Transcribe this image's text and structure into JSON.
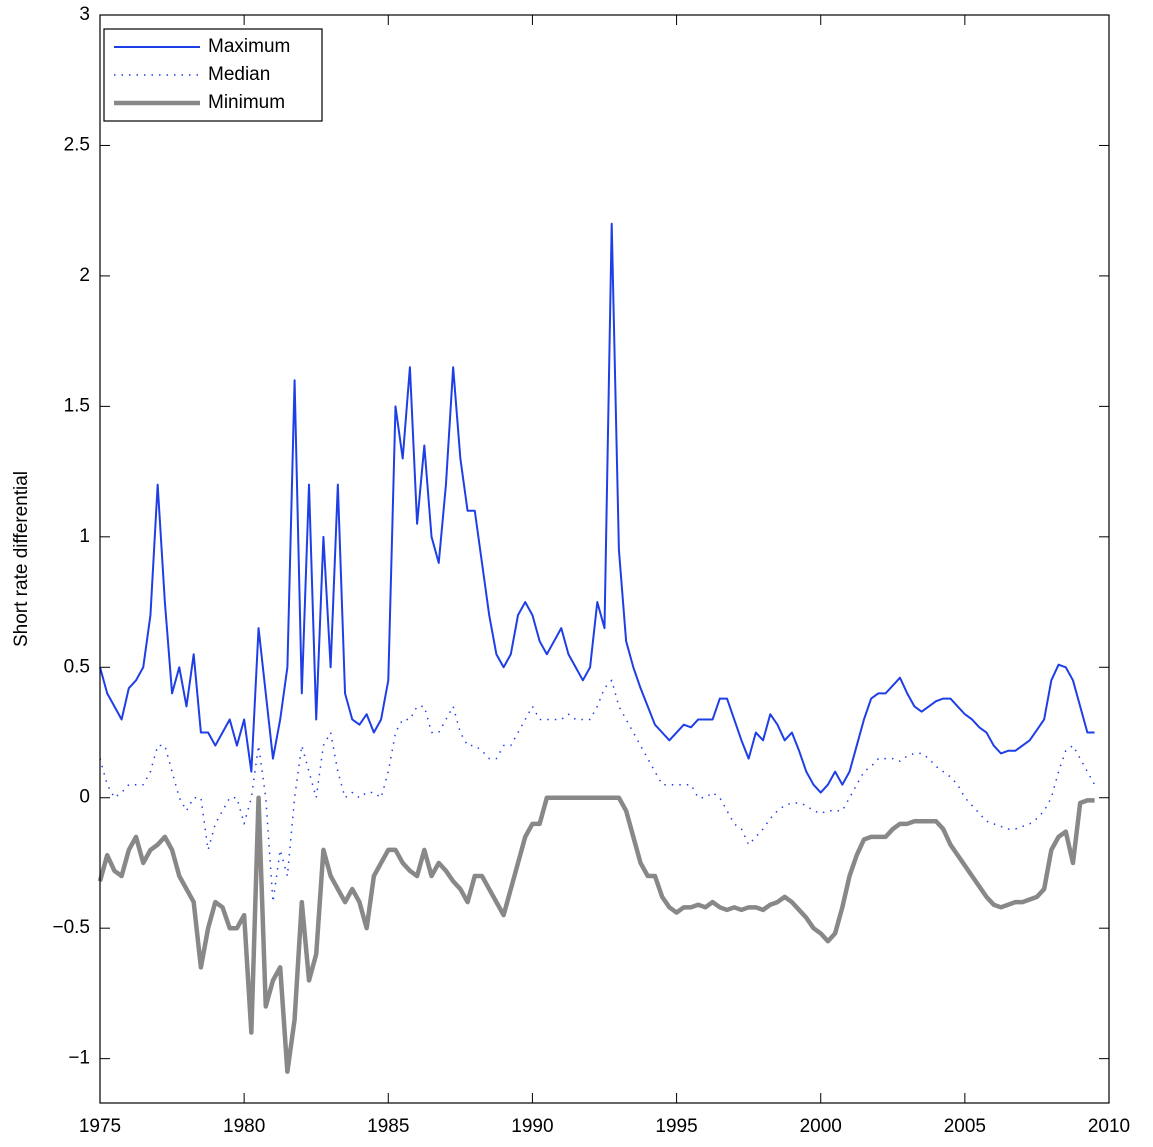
{
  "chart_data": {
    "type": "line",
    "y_label": "Short rate differential",
    "xlim": [
      1975,
      2010
    ],
    "xticks": [
      1975,
      1980,
      1985,
      1990,
      1995,
      2000,
      2005,
      2010
    ],
    "ylim": [
      -1.17,
      3
    ],
    "yticks": [
      {
        "value": -1,
        "label": "−1"
      },
      {
        "value": -0.5,
        "label": "−0.5"
      },
      0,
      0.5,
      1,
      1.5,
      2,
      2.5,
      3
    ],
    "grid": false,
    "legend": "upper left",
    "x": [
      1975,
      1975.25,
      1975.5,
      1975.75,
      1976,
      1976.25,
      1976.5,
      1976.75,
      1977,
      1977.25,
      1977.5,
      1977.75,
      1978,
      1978.25,
      1978.5,
      1978.75,
      1979,
      1979.25,
      1979.5,
      1979.75,
      1980,
      1980.25,
      1980.5,
      1980.75,
      1981,
      1981.25,
      1981.5,
      1981.75,
      1982,
      1982.25,
      1982.5,
      1982.75,
      1983,
      1983.25,
      1983.5,
      1983.75,
      1984,
      1984.25,
      1984.5,
      1984.75,
      1985,
      1985.25,
      1985.5,
      1985.75,
      1986,
      1986.25,
      1986.5,
      1986.75,
      1987,
      1987.25,
      1987.5,
      1987.75,
      1988,
      1988.25,
      1988.5,
      1988.75,
      1989,
      1989.25,
      1989.5,
      1989.75,
      1990,
      1990.25,
      1990.5,
      1990.75,
      1991,
      1991.25,
      1991.5,
      1991.75,
      1992,
      1992.25,
      1992.5,
      1992.75,
      1993,
      1993.25,
      1993.5,
      1993.75,
      1994,
      1994.25,
      1994.5,
      1994.75,
      1995,
      1995.25,
      1995.5,
      1995.75,
      1996,
      1996.25,
      1996.5,
      1996.75,
      1997,
      1997.25,
      1997.5,
      1997.75,
      1998,
      1998.25,
      1998.5,
      1998.75,
      1999,
      1999.25,
      1999.5,
      1999.75,
      2000,
      2000.25,
      2000.5,
      2000.75,
      2001,
      2001.25,
      2001.5,
      2001.75,
      2002,
      2002.25,
      2002.5,
      2002.75,
      2003,
      2003.25,
      2003.5,
      2003.75,
      2004,
      2004.25,
      2004.5,
      2004.75,
      2005,
      2005.25,
      2005.5,
      2005.75,
      2006,
      2006.25,
      2006.5,
      2006.75,
      2007,
      2007.25,
      2007.5,
      2007.75,
      2008,
      2008.25,
      2008.5,
      2008.75,
      2009,
      2009.25,
      2009.5
    ],
    "series": [
      {
        "name": "Maximum",
        "color": "#1f3fe6",
        "line_style": "solid",
        "line_width": 2,
        "values": [
          0.5,
          0.4,
          0.35,
          0.3,
          0.42,
          0.45,
          0.5,
          0.7,
          1.2,
          0.75,
          0.4,
          0.5,
          0.35,
          0.55,
          0.25,
          0.25,
          0.2,
          0.25,
          0.3,
          0.2,
          0.3,
          0.1,
          0.65,
          0.4,
          0.15,
          0.3,
          0.5,
          1.6,
          0.4,
          1.2,
          0.3,
          1.0,
          0.5,
          1.2,
          0.4,
          0.3,
          0.28,
          0.32,
          0.25,
          0.3,
          0.45,
          1.5,
          1.3,
          1.65,
          1.05,
          1.35,
          1.0,
          0.9,
          1.2,
          1.65,
          1.3,
          1.1,
          1.1,
          0.9,
          0.7,
          0.55,
          0.5,
          0.55,
          0.7,
          0.75,
          0.7,
          0.6,
          0.55,
          0.6,
          0.65,
          0.55,
          0.5,
          0.45,
          0.5,
          0.75,
          0.65,
          2.2,
          0.95,
          0.6,
          0.5,
          0.42,
          0.35,
          0.28,
          0.25,
          0.22,
          0.25,
          0.28,
          0.27,
          0.3,
          0.3,
          0.3,
          0.38,
          0.38,
          0.3,
          0.22,
          0.15,
          0.25,
          0.22,
          0.32,
          0.28,
          0.22,
          0.25,
          0.18,
          0.1,
          0.05,
          0.02,
          0.05,
          0.1,
          0.05,
          0.1,
          0.2,
          0.3,
          0.38,
          0.4,
          0.4,
          0.43,
          0.46,
          0.4,
          0.35,
          0.33,
          0.35,
          0.37,
          0.38,
          0.38,
          0.35,
          0.32,
          0.3,
          0.27,
          0.25,
          0.2,
          0.17,
          0.18,
          0.18,
          0.2,
          0.22,
          0.26,
          0.3,
          0.45,
          0.51,
          0.5,
          0.45,
          0.35,
          0.25,
          0.25
        ]
      },
      {
        "name": "Median",
        "color": "#1f3fe6",
        "line_style": "dotted",
        "line_width": 1.5,
        "values": [
          0.15,
          0.05,
          0.0,
          0.02,
          0.05,
          0.05,
          0.05,
          0.1,
          0.2,
          0.2,
          0.1,
          0.0,
          -0.05,
          0.0,
          0.0,
          -0.2,
          -0.1,
          -0.05,
          0.0,
          0.0,
          -0.1,
          0.0,
          0.2,
          0.0,
          -0.4,
          -0.2,
          -0.3,
          0.0,
          0.2,
          0.1,
          0.0,
          0.2,
          0.25,
          0.1,
          0.0,
          0.02,
          0.0,
          0.02,
          0.02,
          0.0,
          0.1,
          0.25,
          0.3,
          0.3,
          0.35,
          0.35,
          0.25,
          0.25,
          0.3,
          0.35,
          0.25,
          0.2,
          0.2,
          0.18,
          0.15,
          0.15,
          0.2,
          0.2,
          0.25,
          0.3,
          0.35,
          0.3,
          0.3,
          0.3,
          0.3,
          0.32,
          0.3,
          0.3,
          0.3,
          0.35,
          0.42,
          0.45,
          0.35,
          0.3,
          0.25,
          0.2,
          0.15,
          0.1,
          0.05,
          0.05,
          0.05,
          0.05,
          0.05,
          0.0,
          0.0,
          0.02,
          0.0,
          -0.05,
          -0.1,
          -0.12,
          -0.18,
          -0.15,
          -0.12,
          -0.08,
          -0.05,
          -0.03,
          -0.02,
          -0.02,
          -0.03,
          -0.05,
          -0.06,
          -0.05,
          -0.05,
          -0.05,
          0.0,
          0.05,
          0.1,
          0.12,
          0.15,
          0.15,
          0.15,
          0.14,
          0.16,
          0.17,
          0.17,
          0.15,
          0.12,
          0.1,
          0.08,
          0.05,
          0.0,
          -0.03,
          -0.06,
          -0.09,
          -0.1,
          -0.11,
          -0.12,
          -0.12,
          -0.11,
          -0.1,
          -0.08,
          -0.05,
          0.0,
          0.1,
          0.18,
          0.2,
          0.15,
          0.1,
          0.05
        ]
      },
      {
        "name": "Minimum",
        "color": "#888888",
        "line_style": "solid",
        "line_width": 4.5,
        "values": [
          -0.32,
          -0.22,
          -0.28,
          -0.3,
          -0.2,
          -0.15,
          -0.25,
          -0.2,
          -0.18,
          -0.15,
          -0.2,
          -0.3,
          -0.35,
          -0.4,
          -0.65,
          -0.5,
          -0.4,
          -0.42,
          -0.5,
          -0.5,
          -0.45,
          -0.9,
          0.0,
          -0.8,
          -0.7,
          -0.65,
          -1.05,
          -0.85,
          -0.4,
          -0.7,
          -0.6,
          -0.2,
          -0.3,
          -0.35,
          -0.4,
          -0.35,
          -0.4,
          -0.5,
          -0.3,
          -0.25,
          -0.2,
          -0.2,
          -0.25,
          -0.28,
          -0.3,
          -0.2,
          -0.3,
          -0.25,
          -0.28,
          -0.32,
          -0.35,
          -0.4,
          -0.3,
          -0.3,
          -0.35,
          -0.4,
          -0.45,
          -0.35,
          -0.25,
          -0.15,
          -0.1,
          -0.1,
          0.0,
          0.0,
          0.0,
          0.0,
          0.0,
          0.0,
          0.0,
          0.0,
          0.0,
          0.0,
          0.0,
          -0.05,
          -0.15,
          -0.25,
          -0.3,
          -0.3,
          -0.38,
          -0.42,
          -0.44,
          -0.42,
          -0.42,
          -0.41,
          -0.42,
          -0.4,
          -0.42,
          -0.43,
          -0.42,
          -0.43,
          -0.42,
          -0.42,
          -0.43,
          -0.41,
          -0.4,
          -0.38,
          -0.4,
          -0.43,
          -0.46,
          -0.5,
          -0.52,
          -0.55,
          -0.52,
          -0.42,
          -0.3,
          -0.22,
          -0.16,
          -0.15,
          -0.15,
          -0.15,
          -0.12,
          -0.1,
          -0.1,
          -0.09,
          -0.09,
          -0.09,
          -0.09,
          -0.12,
          -0.18,
          -0.22,
          -0.26,
          -0.3,
          -0.34,
          -0.38,
          -0.41,
          -0.42,
          -0.41,
          -0.4,
          -0.4,
          -0.39,
          -0.38,
          -0.35,
          -0.2,
          -0.15,
          -0.13,
          -0.25,
          -0.02,
          -0.01,
          -0.01
        ]
      }
    ]
  }
}
